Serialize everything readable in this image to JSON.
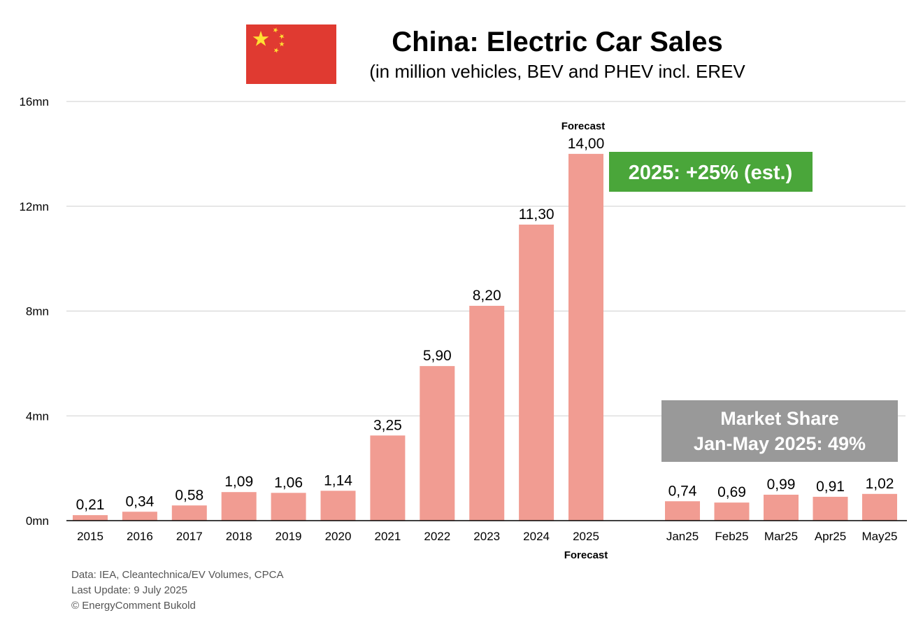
{
  "chart_data": {
    "type": "bar",
    "title": "China: Electric Car Sales",
    "subtitle": "(in million vehicles, BEV and PHEV incl. EREV",
    "ylim": [
      0,
      16
    ],
    "yticks": [
      "0mn",
      "4mn",
      "8mn",
      "12mn",
      "16mn"
    ],
    "ytick_values": [
      0,
      4,
      8,
      12,
      16
    ],
    "grid": true,
    "bar_color": "#f19c92",
    "groups": [
      {
        "name": "annual",
        "categories": [
          "2015",
          "2016",
          "2017",
          "2018",
          "2019",
          "2020",
          "2021",
          "2022",
          "2023",
          "2024",
          "2025"
        ],
        "values": [
          0.21,
          0.34,
          0.58,
          1.09,
          1.06,
          1.14,
          3.25,
          5.9,
          8.2,
          11.3,
          14.0
        ],
        "labels": [
          "0,21",
          "0,34",
          "0,58",
          "1,09",
          "1,06",
          "1,14",
          "3,25",
          "5,90",
          "8,20",
          "11,30",
          "14,00"
        ]
      },
      {
        "name": "monthly",
        "categories": [
          "Jan25",
          "Feb25",
          "Mar25",
          "Apr25",
          "May25"
        ],
        "values": [
          0.74,
          0.69,
          0.99,
          0.91,
          1.02
        ],
        "labels": [
          "0,74",
          "0,69",
          "0,99",
          "0,91",
          "1,02"
        ]
      }
    ],
    "annotations": {
      "forecast_top": "Forecast",
      "forecast_bottom": "Forecast",
      "growth_box": "2025: +25% (est.)",
      "growth_box_color": "#4aa63a",
      "share_box_line1": "Market Share",
      "share_box_line2": "Jan-May 2025: 49%",
      "share_box_color": "#999999"
    }
  },
  "flag": {
    "red": "#e03a31",
    "yellow": "#ffe033"
  },
  "footer": {
    "line1": "Data: IEA, Cleantechnica/EV Volumes, CPCA",
    "line2": "Last Update: 9 July 2025",
    "line3": "© EnergyComment Bukold"
  }
}
